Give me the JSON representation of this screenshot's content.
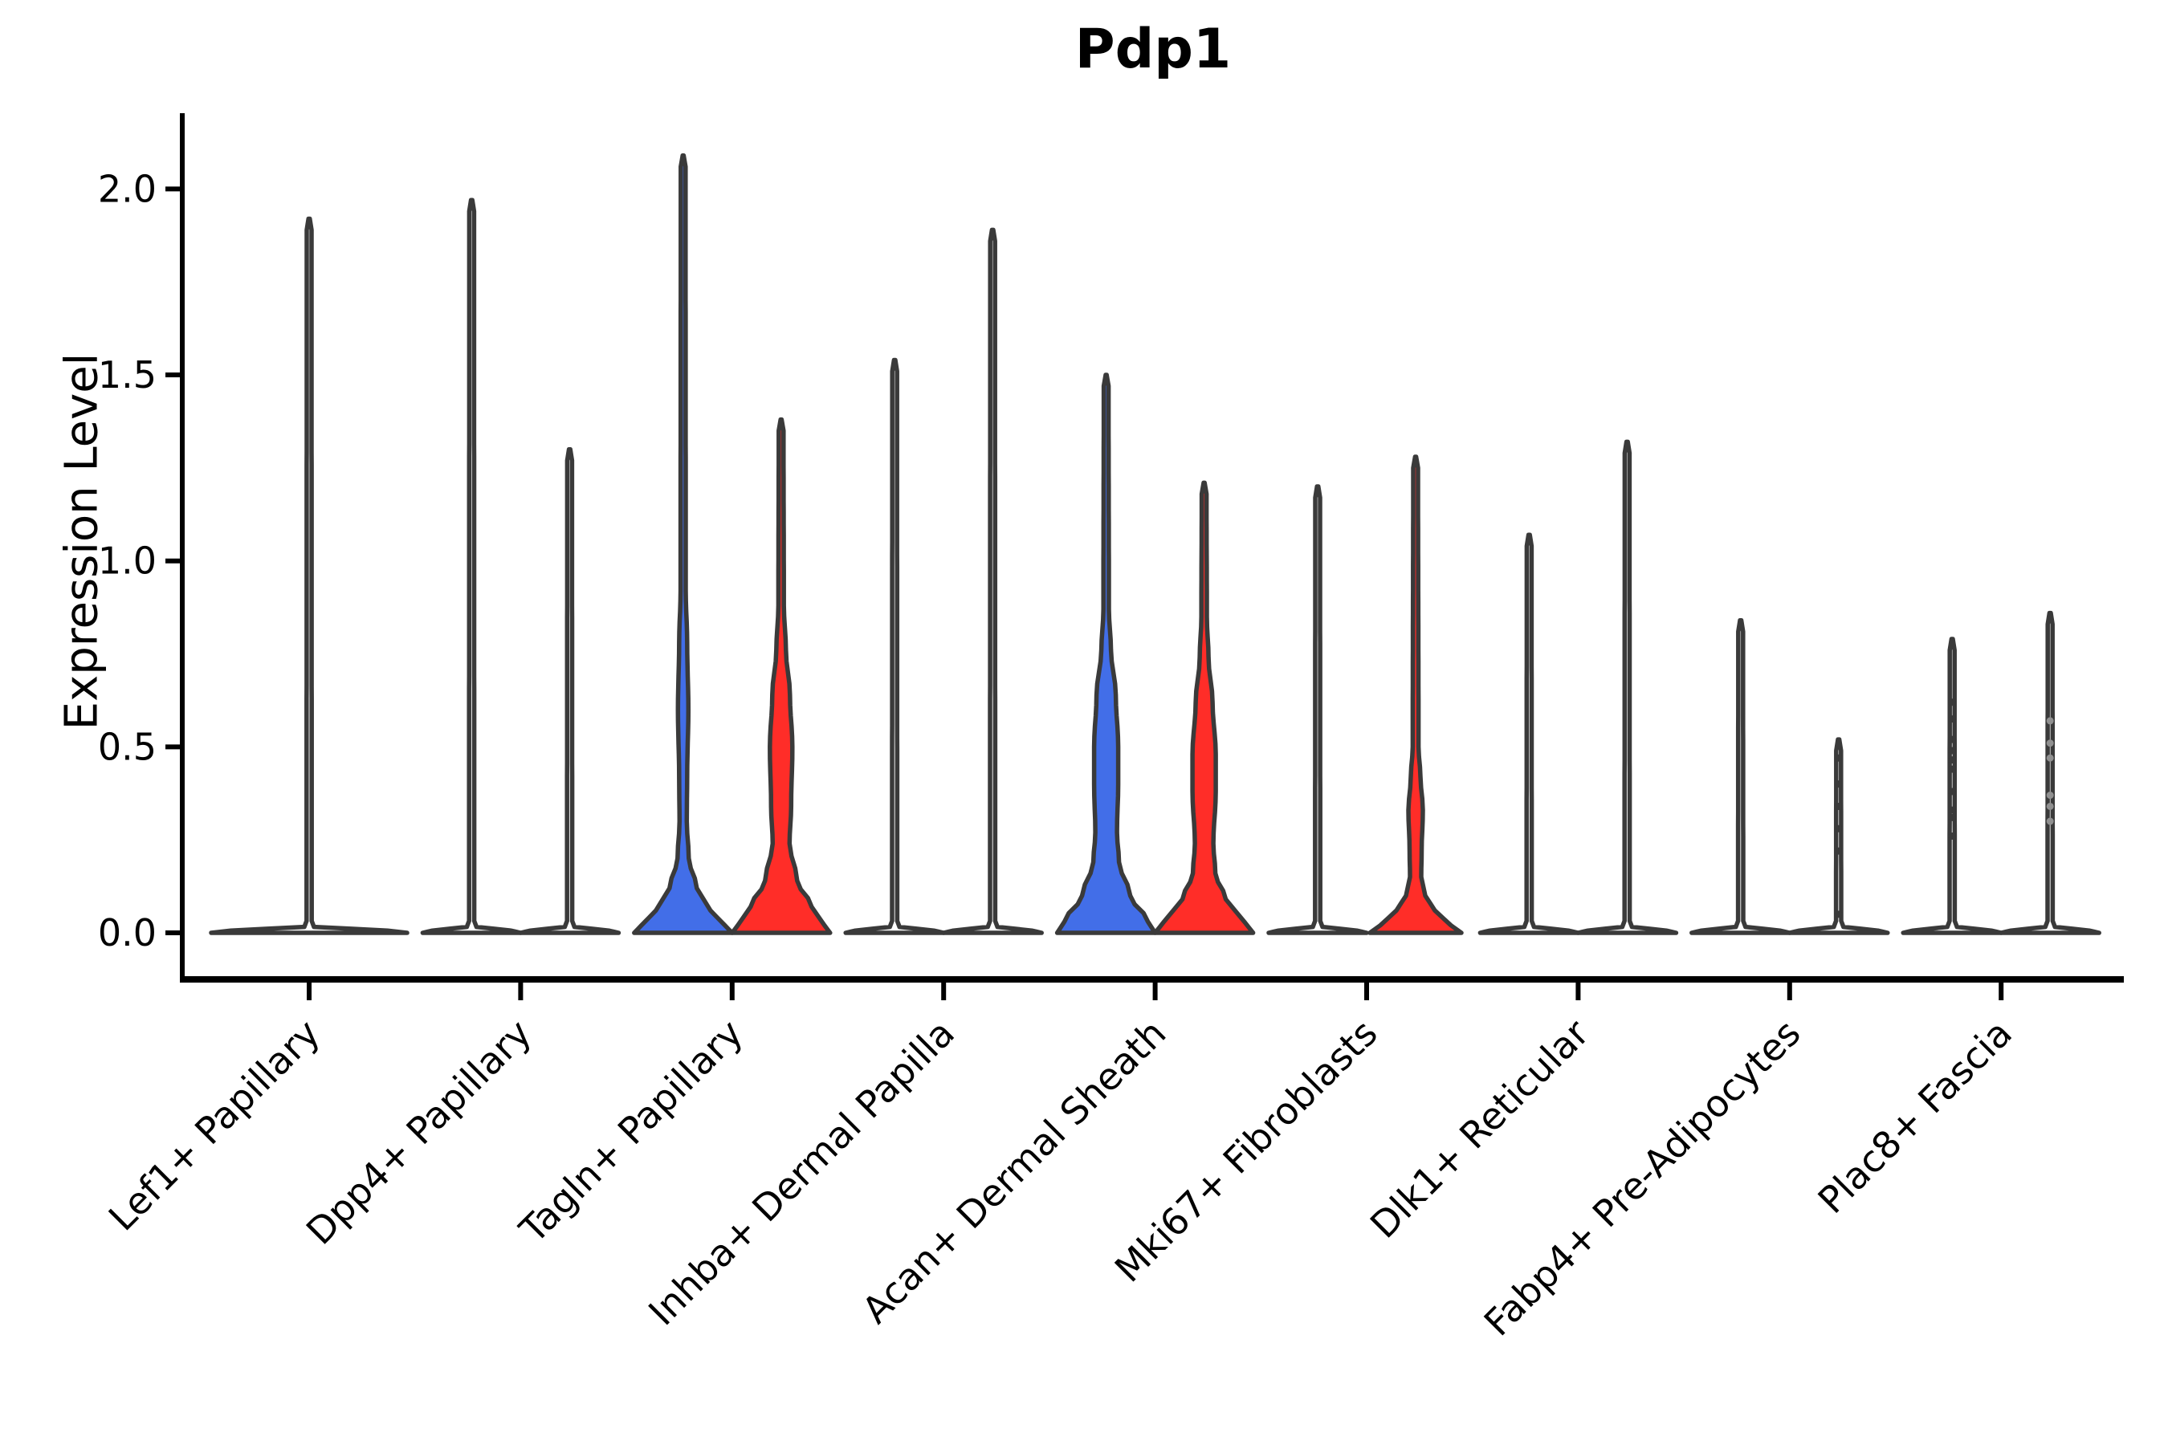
{
  "title": "Pdp1",
  "y_axis": {
    "label": "Expression Level",
    "tick_labels": [
      "0.0",
      "0.5",
      "1.0",
      "1.5",
      "2.0"
    ],
    "tick_values": [
      0.0,
      0.5,
      1.0,
      1.5,
      2.0
    ],
    "range": [
      0,
      2.2
    ]
  },
  "x_axis": {
    "categories": [
      "Lef1+ Papillary",
      "Dpp4+ Papillary",
      "Tagln+ Papillary",
      "Inhba+ Dermal Papilla",
      "Acan+ Dermal Sheath",
      "Mki67+ Fibroblasts",
      "Dlk1+ Reticular",
      "Fabp4+ Pre-Adipocytes",
      "Plac8+ Fascia"
    ]
  },
  "colors": {
    "blue_fill": "#426EE8",
    "red_fill": "#FF2D28",
    "violin_outline": "#3A3A3A",
    "axis": "#000000",
    "dot": "#3A3A3A",
    "faint_dot": "#909090",
    "background": "#FFFFFF"
  },
  "chart_data": {
    "type": "violin",
    "title": "Pdp1",
    "ylabel": "Expression Level",
    "ylim": [
      0,
      2.2
    ],
    "grid": false,
    "legend": "none",
    "categories": [
      "Lef1+ Papillary",
      "Dpp4+ Papillary",
      "Tagln+ Papillary",
      "Inhba+ Dermal Papilla",
      "Acan+ Dermal Sheath",
      "Mki67+ Fibroblasts",
      "Dlk1+ Reticular",
      "Fabp4+ Pre-Adipocytes",
      "Plac8+ Fascia"
    ],
    "groups": [
      {
        "category": "Lef1+ Papillary",
        "violins": [
          {
            "split": "single",
            "shape": "flat",
            "fill": "#FFFFFF",
            "max": 1.92,
            "base_halfwidth": 122,
            "dots": []
          }
        ]
      },
      {
        "category": "Dpp4+ Papillary",
        "violins": [
          {
            "split": "blue",
            "shape": "flat",
            "fill": "#FFFFFF",
            "max": 1.97,
            "base_halfwidth": 61,
            "dots": []
          },
          {
            "split": "red",
            "shape": "flat",
            "fill": "#FFFFFF",
            "max": 1.3,
            "base_halfwidth": 61,
            "dots": []
          }
        ]
      },
      {
        "category": "Tagln+ Papillary",
        "violins": [
          {
            "split": "blue",
            "shape": "body",
            "fill": "#426EE8",
            "max": 2.09,
            "base_halfwidth": 61,
            "profile": [
              [
                0,
                61
              ],
              [
                0.02,
                52
              ],
              [
                0.06,
                34
              ],
              [
                0.12,
                17
              ],
              [
                0.2,
                7
              ],
              [
                0.3,
                4.5
              ],
              [
                0.42,
                5
              ],
              [
                0.6,
                6.5
              ],
              [
                0.78,
                5
              ],
              [
                0.92,
                3.2
              ],
              [
                2.06,
                3
              ],
              [
                2.09,
                0.6
              ]
            ],
            "dots": []
          },
          {
            "split": "red",
            "shape": "body",
            "fill": "#FF2D28",
            "max": 1.38,
            "base_halfwidth": 61,
            "profile": [
              [
                0,
                61
              ],
              [
                0.02,
                54
              ],
              [
                0.07,
                38
              ],
              [
                0.14,
                20
              ],
              [
                0.24,
                10.5
              ],
              [
                0.34,
                12.5
              ],
              [
                0.5,
                14
              ],
              [
                0.64,
                11
              ],
              [
                0.76,
                6
              ],
              [
                0.88,
                3.4
              ],
              [
                1.35,
                3
              ],
              [
                1.38,
                0.6
              ]
            ],
            "dots": []
          }
        ]
      },
      {
        "category": "Inhba+ Dermal Papilla",
        "violins": [
          {
            "split": "blue",
            "shape": "flat",
            "fill": "#FFFFFF",
            "max": 1.54,
            "base_halfwidth": 61,
            "dots": []
          },
          {
            "split": "red",
            "shape": "flat",
            "fill": "#FFFFFF",
            "max": 1.89,
            "base_halfwidth": 61,
            "dots": []
          }
        ]
      },
      {
        "category": "Acan+ Dermal Sheath",
        "violins": [
          {
            "split": "blue",
            "shape": "body",
            "fill": "#426EE8",
            "max": 1.5,
            "base_halfwidth": 61,
            "profile": [
              [
                0,
                61
              ],
              [
                0.03,
                52
              ],
              [
                0.1,
                30
              ],
              [
                0.19,
                16
              ],
              [
                0.27,
                13.5
              ],
              [
                0.4,
                15
              ],
              [
                0.5,
                15
              ],
              [
                0.64,
                12
              ],
              [
                0.76,
                6
              ],
              [
                0.87,
                3.4
              ],
              [
                1.47,
                3
              ],
              [
                1.5,
                0.6
              ]
            ],
            "dots": []
          },
          {
            "split": "red",
            "shape": "body",
            "fill": "#FF2D28",
            "max": 1.21,
            "base_halfwidth": 61,
            "profile": [
              [
                0,
                61
              ],
              [
                0.03,
                50
              ],
              [
                0.09,
                27
              ],
              [
                0.16,
                14
              ],
              [
                0.24,
                11.5
              ],
              [
                0.38,
                14.5
              ],
              [
                0.48,
                14.5
              ],
              [
                0.62,
                10.5
              ],
              [
                0.74,
                5.5
              ],
              [
                0.85,
                3.4
              ],
              [
                1.18,
                3
              ],
              [
                1.21,
                0.6
              ]
            ],
            "dots": []
          }
        ]
      },
      {
        "category": "Mki67+ Fibroblasts",
        "violins": [
          {
            "split": "blue",
            "shape": "flat",
            "fill": "#FFFFFF",
            "max": 1.2,
            "base_halfwidth": 61,
            "dots": []
          },
          {
            "split": "red",
            "shape": "body",
            "fill": "#FF2D28",
            "max": 1.28,
            "base_halfwidth": 57,
            "profile": [
              [
                0,
                57
              ],
              [
                0.02,
                44
              ],
              [
                0.06,
                24
              ],
              [
                0.1,
                12
              ],
              [
                0.15,
                7
              ],
              [
                0.22,
                7.5
              ],
              [
                0.33,
                9
              ],
              [
                0.42,
                6
              ],
              [
                0.5,
                3.6
              ],
              [
                1.25,
                3
              ],
              [
                1.28,
                0.6
              ]
            ],
            "dots": []
          }
        ]
      },
      {
        "category": "Dlk1+ Reticular",
        "violins": [
          {
            "split": "blue",
            "shape": "flat",
            "fill": "#FFFFFF",
            "max": 1.07,
            "base_halfwidth": 61,
            "dots": []
          },
          {
            "split": "red",
            "shape": "flat",
            "fill": "#FFFFFF",
            "max": 1.32,
            "base_halfwidth": 61,
            "dots": []
          }
        ]
      },
      {
        "category": "Fabp4+ Pre-Adipocytes",
        "violins": [
          {
            "split": "blue",
            "shape": "flat",
            "fill": "#FFFFFF",
            "max": 0.84,
            "base_halfwidth": 61,
            "dots": []
          },
          {
            "split": "red",
            "shape": "flat",
            "fill": "#FFFFFF",
            "max": 0.52,
            "base_halfwidth": 61,
            "dots": [
              0.47,
              0.4,
              0.34,
              0.28,
              0.22,
              0.05
            ]
          }
        ]
      },
      {
        "category": "Plac8+ Fascia",
        "violins": [
          {
            "split": "blue",
            "shape": "flat",
            "fill": "#FFFFFF",
            "max": 0.79,
            "base_halfwidth": 61,
            "dots": [
              0.62,
              0.575,
              0.52,
              0.49,
              0.465,
              0.44,
              0.38,
              0.33,
              0.31,
              0.26
            ]
          },
          {
            "split": "red",
            "shape": "flat",
            "fill": "#FFFFFF",
            "max": 0.86,
            "base_halfwidth": 61,
            "faint_dots": true,
            "dots": [
              0.57,
              0.51,
              0.47,
              0.37,
              0.34,
              0.3
            ]
          }
        ]
      }
    ]
  }
}
